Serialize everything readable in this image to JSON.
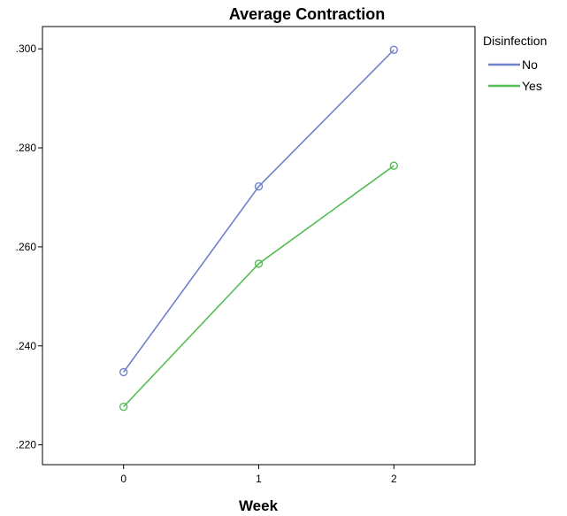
{
  "chart_data": {
    "type": "line",
    "title": "Average Contraction",
    "xlabel": "Week",
    "ylabel": "",
    "x": [
      0,
      1,
      2
    ],
    "x_tick_labels": [
      "0",
      "1",
      "2"
    ],
    "xlim": [
      -0.6,
      2.6
    ],
    "ylim": [
      0.216,
      0.3045
    ],
    "y_ticks": [
      0.22,
      0.24,
      0.26,
      0.28,
      0.3
    ],
    "y_tick_labels": [
      ".220",
      ".240",
      ".260",
      ".280",
      ".300"
    ],
    "grid": false,
    "legend": {
      "title": "Disinfection",
      "placement": "top-right"
    },
    "series": [
      {
        "name": "No",
        "color": "#6f82c9",
        "values": [
          0.2347,
          0.2722,
          0.2998
        ]
      },
      {
        "name": "Yes",
        "color": "#55bd55",
        "values": [
          0.2277,
          0.2566,
          0.2764
        ]
      }
    ]
  }
}
